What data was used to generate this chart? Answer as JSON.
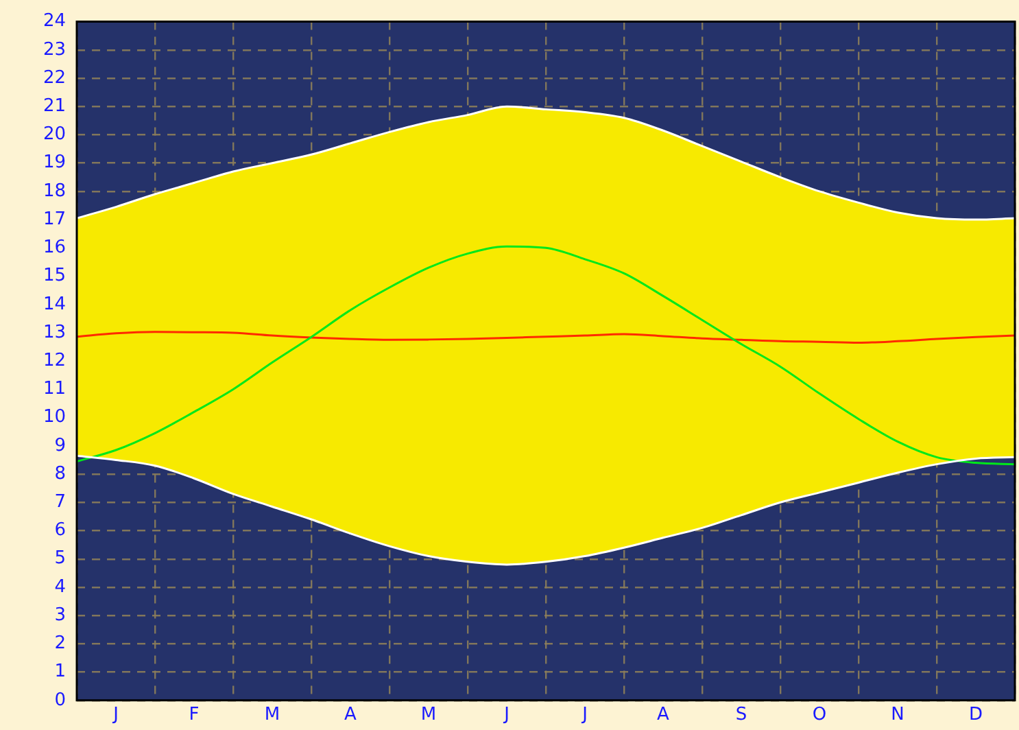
{
  "chart_data": {
    "type": "line",
    "categories": [
      null,
      "J",
      null,
      "F",
      null,
      "M",
      null,
      "A",
      null,
      "M",
      null,
      "J",
      null,
      "J",
      null,
      "A",
      null,
      "S",
      null,
      "O",
      null,
      "N",
      null,
      "D",
      null
    ],
    "series": [
      {
        "color": "#ffffff",
        "values": [
          8.65,
          8.5,
          8.3,
          7.85,
          7.3,
          6.85,
          6.4,
          5.9,
          5.45,
          5.1,
          4.9,
          4.8,
          4.9,
          5.1,
          5.4,
          5.75,
          6.1,
          6.55,
          7.0,
          7.35,
          7.7,
          8.05,
          8.35,
          8.55,
          8.6
        ]
      },
      {
        "type": "area",
        "color": "#f7ea00",
        "values": [
          17.05,
          17.45,
          17.9,
          18.3,
          18.7,
          19.0,
          19.3,
          19.7,
          20.1,
          20.45,
          20.7,
          21.0,
          20.9,
          20.8,
          20.6,
          20.15,
          19.6,
          19.05,
          18.5,
          18.0,
          17.6,
          17.25,
          17.05,
          17.0,
          17.05
        ]
      },
      {
        "color": "#00e81a",
        "values": [
          8.45,
          8.85,
          9.45,
          10.2,
          11.0,
          11.95,
          12.85,
          13.8,
          14.6,
          15.3,
          15.8,
          16.05,
          16.0,
          15.6,
          15.1,
          14.3,
          13.45,
          12.6,
          11.8,
          10.85,
          9.95,
          9.15,
          8.6,
          8.4,
          8.35
        ]
      },
      {
        "color": "#ff2a00",
        "values": [
          12.86,
          12.98,
          13.03,
          13.02,
          13.0,
          12.9,
          12.83,
          12.78,
          12.75,
          12.76,
          12.78,
          12.82,
          12.86,
          12.9,
          12.95,
          12.88,
          12.8,
          12.75,
          12.7,
          12.68,
          12.65,
          12.7,
          12.78,
          12.85,
          12.9
        ]
      }
    ],
    "ylim": [
      0,
      24
    ],
    "yticks": [
      0,
      1,
      2,
      3,
      4,
      5,
      6,
      7,
      8,
      9,
      10,
      11,
      12,
      13,
      14,
      15,
      16,
      17,
      18,
      19,
      20,
      21,
      22,
      23,
      24
    ],
    "grid": true,
    "legend": false,
    "marker": "none",
    "line_style": "solid"
  }
}
